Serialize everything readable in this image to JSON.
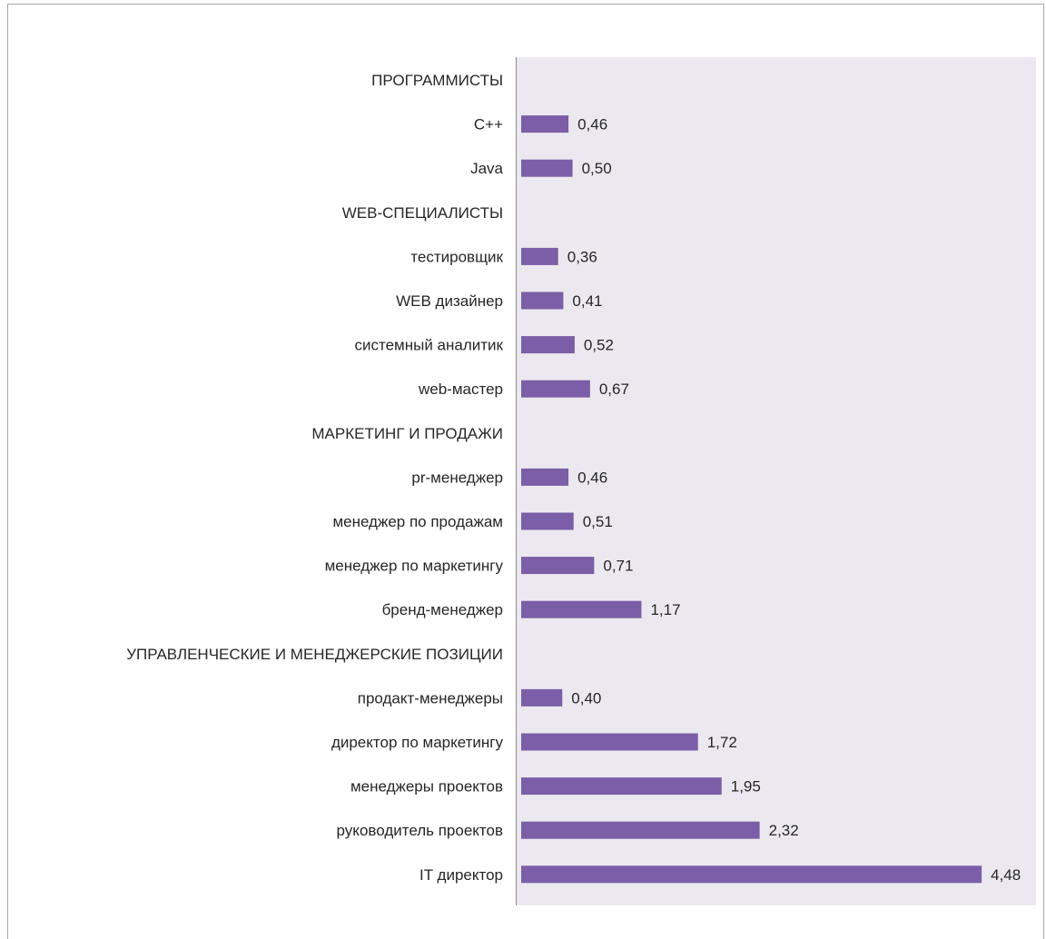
{
  "chart_data": {
    "type": "bar",
    "orientation": "horizontal",
    "categories": [
      "ПРОГРАММИСТЫ",
      "C++",
      "Java",
      "WEB-СПЕЦИАЛИСТЫ",
      "тестировщик",
      "WEB дизайнер",
      "системный аналитик",
      "web-мастер",
      "МАРКЕТИНГ И ПРОДАЖИ",
      "pr-менеджер",
      "менеджер по продажам",
      "менеджер по маркетингу",
      "бренд-менеджер",
      "УПРАВЛЕНЧЕСКИЕ И МЕНЕДЖЕРСКИЕ ПОЗИЦИИ",
      "продакт-менеджеры",
      "директор по маркетингу",
      "менеджеры проектов",
      "руководитель проектов",
      "IT директор"
    ],
    "values": [
      null,
      0.46,
      0.5,
      null,
      0.36,
      0.41,
      0.52,
      0.67,
      null,
      0.46,
      0.51,
      0.71,
      1.17,
      null,
      0.4,
      1.72,
      1.95,
      2.32,
      4.48
    ],
    "value_labels": [
      "",
      "0,46",
      "0,50",
      "",
      "0,36",
      "0,41",
      "0,52",
      "0,67",
      "",
      "0,46",
      "0,51",
      "0,71",
      "1,17",
      "",
      "0,40",
      "1,72",
      "1,95",
      "2,32",
      "4,48"
    ],
    "xlim": [
      0,
      4.6
    ],
    "title": "",
    "xlabel": "",
    "ylabel": "",
    "grid": false,
    "legend": "none",
    "colors": {
      "bar": "#7b5ea7",
      "plot_background": "#ebe9ef",
      "frame": "#a8a8a8",
      "text": "#262626"
    }
  }
}
